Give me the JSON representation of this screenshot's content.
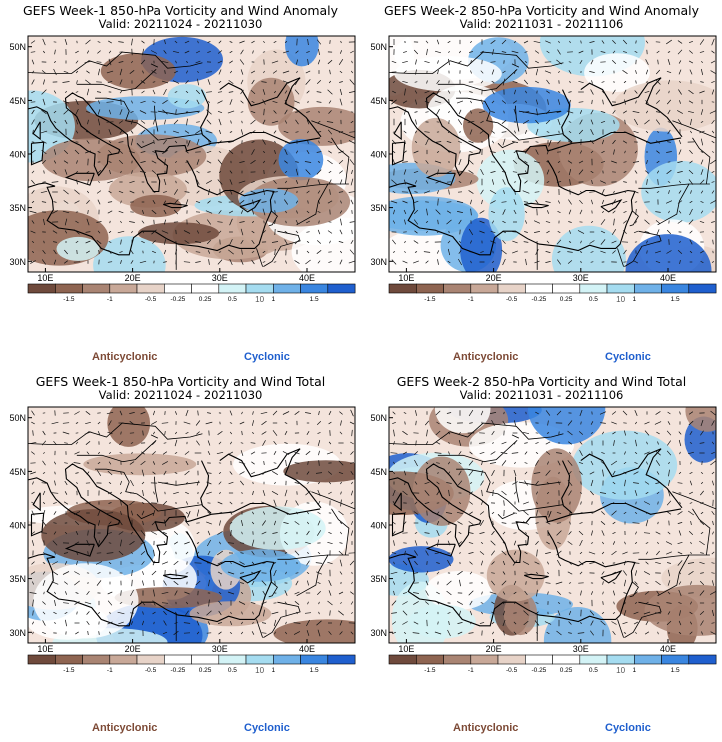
{
  "panels": [
    {
      "title": "GEFS Week-1 850-hPa Vorticity and Wind Anomaly",
      "valid": "Valid: 20211024 - 20211030",
      "seed": 11
    },
    {
      "title": "GEFS Week-2 850-hPa Vorticity and Wind Anomaly",
      "valid": "Valid: 20211031 - 20211106",
      "seed": 23
    },
    {
      "title": "GEFS Week-1 850-hPa Vorticity and Wind Total",
      "valid": "Valid: 20211024 - 20211030",
      "seed": 37
    },
    {
      "title": "GEFS Week-2 850-hPa Vorticity and Wind Total",
      "valid": "Valid: 20211031 - 20211106",
      "seed": 53
    }
  ],
  "lat_labels": [
    "50N",
    "45N",
    "40N",
    "35N",
    "30N"
  ],
  "lon_labels": [
    "10E",
    "20E",
    "30E",
    "40E"
  ],
  "colorbar": {
    "ticks": [
      "-1.5",
      "-1",
      "-0.5",
      "-0.25",
      "0.25",
      "0.5",
      "1",
      "1.5"
    ],
    "scale_note": "10",
    "colors": [
      "#6f4a3c",
      "#8e6451",
      "#a98473",
      "#c8a898",
      "#e7d3c8",
      "#ffffff",
      "#ffffff",
      "#d3f3f6",
      "#a5dcf0",
      "#6fb1e8",
      "#3a86e0",
      "#1f5fce"
    ]
  },
  "legend": {
    "anticyclonic": "Anticyclonic",
    "cyclonic": "Cyclonic",
    "anticyclonic_color": "#7d4a36",
    "cyclonic_color": "#1f5fce"
  }
}
